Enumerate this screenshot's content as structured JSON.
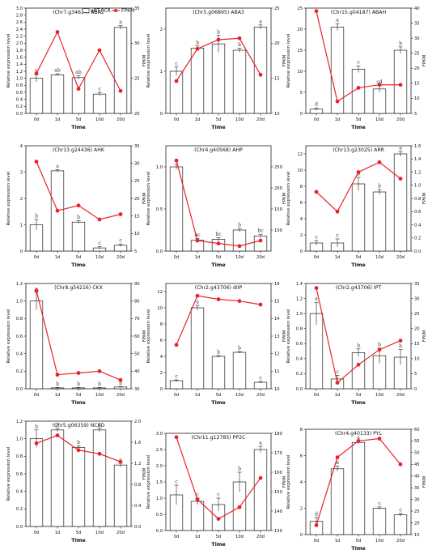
{
  "legend": {
    "bar_label": "qRT-PCR",
    "line_label": "FPKM"
  },
  "colors": {
    "line": "#e8232a",
    "bar_fill": "#ffffff",
    "bar_stroke": "#222222",
    "axis": "#222222"
  },
  "chart_data": [
    {
      "type": "bar",
      "title": "(Chr7.g34634) ABA2",
      "xlabel": "Time",
      "ylabel": "Relative expression level",
      "y2label": "FPKM",
      "categories": [
        "0d",
        "1d",
        "5d",
        "10d",
        "20d"
      ],
      "ylim": [
        0,
        3
      ],
      "y2lim": [
        20,
        35
      ],
      "yticks": [
        "0.0",
        "0.2",
        "0.4",
        "0.6",
        "0.8",
        "1.0",
        "1.2",
        "1.4",
        "1.6",
        "1.8",
        "2.0",
        "2.2",
        "2.4",
        "2.6",
        "2.8",
        "3.0"
      ],
      "y2ticks": [
        "20",
        "25",
        "30",
        "35"
      ],
      "bars": [
        1.0,
        1.1,
        1.02,
        0.55,
        2.45
      ],
      "errors": [
        0.1,
        0.03,
        0.05,
        0.05,
        0.05
      ],
      "letters": [
        "b",
        "ab",
        "ab",
        "c",
        "a"
      ],
      "fpkm": [
        25.7,
        31.6,
        23.5,
        29.0,
        23.2
      ]
    },
    {
      "type": "bar",
      "title": "(Chr5.g06895) ABA3",
      "xlabel": "Time",
      "ylabel": "Relative expression level",
      "y2label": "FPKM",
      "categories": [
        "0d",
        "1d",
        "5d",
        "10d",
        "20d"
      ],
      "ylim": [
        0,
        2.5
      ],
      "y2lim": [
        10,
        25
      ],
      "yticks": [
        "0",
        "1",
        "2"
      ],
      "y2ticks": [
        "10",
        "15",
        "20",
        "25"
      ],
      "bars": [
        1.0,
        1.55,
        1.65,
        1.5,
        2.05
      ],
      "errors": [
        0.1,
        0.05,
        0.2,
        0.05,
        0.05
      ],
      "letters": [
        "c",
        "b",
        "b",
        "b",
        "a"
      ],
      "fpkm": [
        14.6,
        19.2,
        20.5,
        20.7,
        15.5
      ]
    },
    {
      "type": "bar",
      "title": "(Chr15.g04187) ABAH",
      "xlabel": "Time",
      "ylabel": "Relative expression level",
      "y2label": "FPKM",
      "categories": [
        "0d",
        "1d",
        "5d",
        "10d",
        "20d"
      ],
      "ylim": [
        0,
        25
      ],
      "y2lim": [
        5,
        40
      ],
      "yticks": [
        "0",
        "5",
        "10",
        "15",
        "20",
        "25"
      ],
      "y2ticks": [
        "5",
        "10",
        "15",
        "20",
        "25",
        "30",
        "35",
        "40"
      ],
      "bars": [
        1.0,
        20.5,
        10.5,
        5.8,
        15.0
      ],
      "errors": [
        0.3,
        0.8,
        0.8,
        0.8,
        0.8
      ],
      "letters": [
        "d",
        "a",
        "c",
        "cd",
        "b"
      ],
      "fpkm": [
        39.0,
        9.0,
        13.5,
        14.5,
        14.5
      ]
    },
    {
      "type": "bar",
      "title": "(Chr13.g24436) AHK",
      "xlabel": "Time",
      "ylabel": "Relative expression level",
      "y2label": "FPKM",
      "categories": [
        "0d",
        "1d",
        "5d",
        "10d",
        "20d"
      ],
      "ylim": [
        0,
        4
      ],
      "y2lim": [
        5,
        35
      ],
      "yticks": [
        "0",
        "1",
        "2",
        "3",
        "4"
      ],
      "y2ticks": [
        "5",
        "10",
        "15",
        "20",
        "25",
        "30",
        "35"
      ],
      "bars": [
        1.0,
        3.05,
        1.1,
        0.12,
        0.22
      ],
      "errors": [
        0.2,
        0.05,
        0.05,
        0.05,
        0.05
      ],
      "letters": [
        "b",
        "a",
        "b",
        "c",
        "c"
      ],
      "fpkm": [
        30.5,
        16.5,
        18.0,
        14.0,
        15.5
      ]
    },
    {
      "type": "bar",
      "title": "(Chr4.g40568) AHP",
      "xlabel": "Time",
      "ylabel": "Relative expression level",
      "y2label": "FPKM",
      "categories": [
        "0d",
        "1d",
        "5d",
        "10d",
        "20d"
      ],
      "ylim": [
        0,
        1.25
      ],
      "y2lim": [
        50,
        300
      ],
      "yticks": [
        "0.0",
        "0.5",
        "1.0"
      ],
      "y2ticks": [
        "100",
        "150",
        "200",
        "250"
      ],
      "bars": [
        1.0,
        0.13,
        0.14,
        0.25,
        0.18
      ],
      "errors": [
        0.03,
        0.02,
        0.02,
        0.02,
        0.02
      ],
      "letters": [
        "a",
        "bc",
        "bc",
        "b",
        "bc"
      ],
      "fpkm": [
        265,
        75,
        68,
        62,
        75
      ]
    },
    {
      "type": "bar",
      "title": "(Chr13.g23025) ARR",
      "xlabel": "Time",
      "ylabel": "Relative expression level",
      "y2label": "FPKM",
      "categories": [
        "0d",
        "1d",
        "5d",
        "10d",
        "20d"
      ],
      "ylim": [
        0,
        13
      ],
      "y2lim": [
        0,
        1.6
      ],
      "yticks": [
        "0",
        "2",
        "4",
        "6",
        "8",
        "10",
        "12"
      ],
      "y2ticks": [
        "0.0",
        "0.2",
        "0.4",
        "0.6",
        "0.8",
        "1.0",
        "1.2",
        "1.4",
        "1.6"
      ],
      "bars": [
        1.0,
        1.0,
        8.3,
        7.3,
        12.0
      ],
      "errors": [
        0.3,
        0.5,
        0.8,
        0.3,
        0.3
      ],
      "letters": [
        "c",
        "c",
        "b",
        "b",
        "a"
      ],
      "fpkm": [
        0.9,
        0.6,
        1.2,
        1.35,
        1.1
      ]
    },
    {
      "type": "bar",
      "title": "(Chr8.g54216) CKX",
      "xlabel": "Time",
      "ylabel": "Relative expression level",
      "y2label": "FPKM",
      "categories": [
        "0d",
        "1d",
        "5d",
        "10d",
        "20d"
      ],
      "ylim": [
        0,
        1.2
      ],
      "y2lim": [
        30,
        90
      ],
      "yticks": [
        "0.0",
        "0.2",
        "0.4",
        "0.6",
        "0.8",
        "1.0",
        "1.2"
      ],
      "y2ticks": [
        "30",
        "40",
        "50",
        "60",
        "70",
        "80",
        "90"
      ],
      "bars": [
        1.0,
        0.01,
        0.01,
        0.01,
        0.02
      ],
      "errors": [
        0.1,
        0.005,
        0.005,
        0.005,
        0.005
      ],
      "letters": [
        "a",
        "b",
        "b",
        "b",
        "b"
      ],
      "fpkm": [
        86,
        38,
        39,
        40,
        35
      ]
    },
    {
      "type": "bar",
      "title": "(Chr2.g43706) dIIP",
      "xlabel": "Time",
      "ylabel": "Relative expression level",
      "y2label": "FPKM",
      "categories": [
        "0d",
        "1d",
        "5d",
        "10d",
        "20d"
      ],
      "ylim": [
        0,
        13
      ],
      "y2lim": [
        10,
        16
      ],
      "yticks": [
        "0",
        "2",
        "4",
        "6",
        "8",
        "10",
        "12"
      ],
      "y2ticks": [
        "10",
        "11",
        "12",
        "13",
        "14",
        "15",
        "16"
      ],
      "bars": [
        1.0,
        10.0,
        4.0,
        4.5,
        0.8
      ],
      "errors": [
        0.1,
        0.3,
        0.1,
        0.1,
        0.1
      ],
      "letters": [
        "c",
        "a",
        "b",
        "b",
        "c"
      ],
      "fpkm": [
        12.5,
        15.3,
        15.1,
        15.0,
        14.8
      ]
    },
    {
      "type": "bar",
      "title": "(Chr2.g43706) IPT",
      "xlabel": "Time",
      "ylabel": "Relative expression level",
      "y2label": "FPKM",
      "categories": [
        "0d",
        "1d",
        "5d",
        "10d",
        "20d"
      ],
      "ylim": [
        0,
        1.4
      ],
      "y2lim": [
        0,
        35
      ],
      "yticks": [
        "0.0",
        "0.2",
        "0.4",
        "0.6",
        "0.8",
        "1.0",
        "1.2",
        "1.4"
      ],
      "y2ticks": [
        "0",
        "5",
        "10",
        "15",
        "20",
        "25",
        "30",
        "35"
      ],
      "bars": [
        1.0,
        0.13,
        0.48,
        0.44,
        0.42
      ],
      "errors": [
        0.15,
        0.05,
        0.05,
        0.1,
        0.1
      ],
      "letters": [
        "a",
        "c",
        "b",
        "b",
        "b"
      ],
      "fpkm": [
        33.5,
        2.0,
        8.0,
        13.0,
        16.0
      ]
    },
    {
      "type": "bar",
      "title": "(Chr5.g06359) NCED",
      "xlabel": "Time",
      "ylabel": "Relative expression level",
      "y2label": "FPKM",
      "categories": [
        "0d",
        "1d",
        "5d",
        "10d",
        "20d"
      ],
      "ylim": [
        0,
        1.2
      ],
      "y2lim": [
        0,
        2.0
      ],
      "yticks": [
        "0.0",
        "0.2",
        "0.4",
        "0.6",
        "0.8",
        "1.0",
        "1.2"
      ],
      "y2ticks": [
        "0.0",
        "0.4",
        "0.8",
        "1.2",
        "1.6",
        "2.0"
      ],
      "bars": [
        1.0,
        1.1,
        0.9,
        1.1,
        0.7
      ],
      "errors": [
        0.1,
        0.02,
        0.02,
        0.02,
        0.02
      ],
      "letters": [
        "b",
        "a",
        "b",
        "a",
        "c"
      ],
      "fpkm": [
        1.58,
        1.73,
        1.45,
        1.38,
        1.23
      ]
    },
    {
      "type": "bar",
      "title": "(Chr11.g12785) PP2C",
      "xlabel": "Time",
      "ylabel": "Relative expression level",
      "y2label": "FPKM",
      "categories": [
        "0d",
        "1d",
        "5d",
        "10d",
        "20d"
      ],
      "ylim": [
        0,
        3
      ],
      "y2lim": [
        130,
        180
      ],
      "yticks": [
        "0.0",
        "0.5",
        "1.0",
        "1.5",
        "2.0",
        "2.5",
        "3.0"
      ],
      "y2ticks": [
        "130",
        "140",
        "150",
        "160",
        "170",
        "180"
      ],
      "bars": [
        1.1,
        0.9,
        0.8,
        1.5,
        2.5
      ],
      "errors": [
        0.3,
        0.1,
        0.2,
        0.3,
        0.1
      ],
      "letters": [
        "c",
        "c",
        "c",
        "b",
        "a"
      ],
      "fpkm": [
        178,
        146,
        136,
        142,
        157
      ]
    },
    {
      "type": "bar",
      "title": "(Chr4.g40133) PYL",
      "xlabel": "Time",
      "ylabel": "Relative expression level",
      "y2label": "FPKM",
      "categories": [
        "0d",
        "1d",
        "5d",
        "10d",
        "20d"
      ],
      "ylim": [
        0,
        8
      ],
      "y2lim": [
        15,
        60
      ],
      "yticks": [
        "0",
        "2",
        "4",
        "6",
        "8"
      ],
      "y2ticks": [
        "15",
        "20",
        "25",
        "30",
        "35",
        "40",
        "45",
        "50",
        "55",
        "60"
      ],
      "bars": [
        1.0,
        5.0,
        7.0,
        2.0,
        1.5
      ],
      "errors": [
        0.3,
        0.2,
        0.1,
        0.1,
        0.1
      ],
      "letters": [
        "d",
        "b",
        "a",
        "c",
        "c"
      ],
      "fpkm": [
        19,
        48,
        55,
        56,
        45
      ]
    }
  ]
}
